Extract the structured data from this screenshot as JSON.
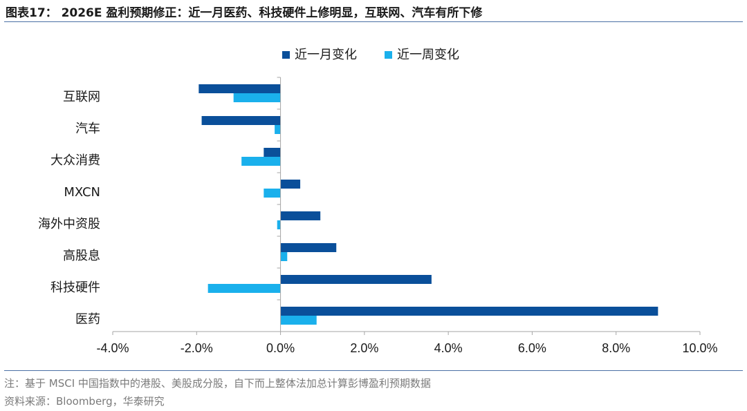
{
  "header": {
    "title": "图表17： 2026E 盈利预期修正：近一月医药、科技硬件上修明显，互联网、汽车有所下修"
  },
  "footer": {
    "note": "注：基于 MSCI 中国指数中的港股、美股成分股，自下而上整体法加总计算彭博盈利预期数据",
    "source": "资料来源：Bloomberg，华泰研究"
  },
  "colors": {
    "series1": "#0a4f9a",
    "series2": "#1ab0ec",
    "axis": "#a6a6a6",
    "rule": "#4a6fa5"
  },
  "chart_data": {
    "type": "bar",
    "orientation": "horizontal",
    "categories": [
      "互联网",
      "汽车",
      "大众消费",
      "MXCN",
      "海外中资股",
      "高股息",
      "科技硬件",
      "医药"
    ],
    "series": [
      {
        "name": "近一月变化",
        "values": [
          -1.95,
          -1.88,
          -0.4,
          0.47,
          0.95,
          1.33,
          3.6,
          9.0
        ]
      },
      {
        "name": "近一周变化",
        "values": [
          -1.12,
          -0.14,
          -0.93,
          -0.4,
          -0.08,
          0.16,
          -1.73,
          0.86
        ]
      }
    ],
    "xlim": [
      -4.0,
      10.0
    ],
    "x_ticks": [
      -4.0,
      -2.0,
      0.0,
      2.0,
      4.0,
      6.0,
      8.0,
      10.0
    ],
    "tick_labels": [
      "-4.0%",
      "-2.0%",
      "0.0%",
      "2.0%",
      "4.0%",
      "6.0%",
      "8.0%",
      "10.0%"
    ],
    "unit": "%",
    "legend_position": "top-center",
    "grid": false
  }
}
